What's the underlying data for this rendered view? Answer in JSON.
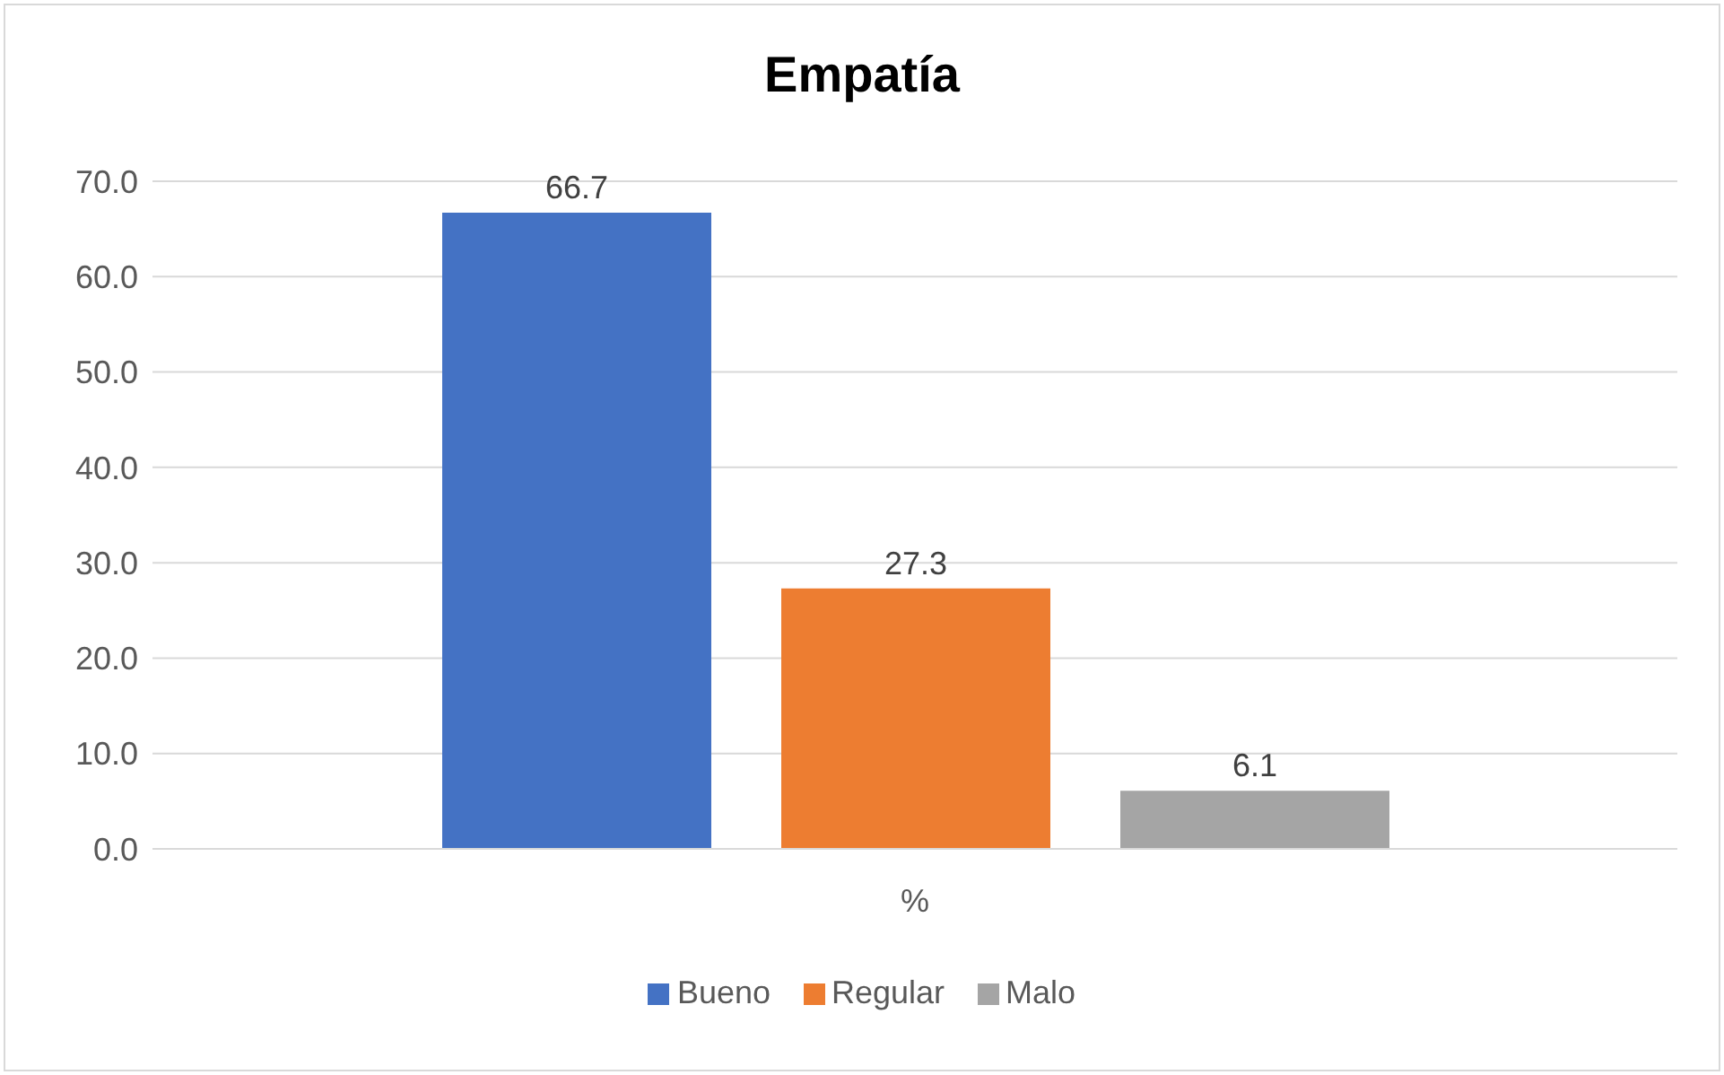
{
  "chart_data": {
    "type": "bar",
    "title": "Empatía",
    "categories": [
      "%"
    ],
    "series": [
      {
        "name": "Bueno",
        "color": "#4472c4",
        "values": [
          66.7
        ]
      },
      {
        "name": "Regular",
        "color": "#ed7d31",
        "values": [
          27.3
        ]
      },
      {
        "name": "Malo",
        "color": "#a5a5a5",
        "values": [
          6.1
        ]
      }
    ],
    "ylim": [
      0,
      70
    ],
    "yticks": [
      {
        "value": 0,
        "label": "0.0"
      },
      {
        "value": 10,
        "label": "10.0"
      },
      {
        "value": 20,
        "label": "20.0"
      },
      {
        "value": 30,
        "label": "30.0"
      },
      {
        "value": 40,
        "label": "40.0"
      },
      {
        "value": 50,
        "label": "50.0"
      },
      {
        "value": 60,
        "label": "60.0"
      },
      {
        "value": 70,
        "label": "70.0"
      }
    ],
    "grid": "y",
    "legend": "bottom",
    "data_labels": true
  }
}
